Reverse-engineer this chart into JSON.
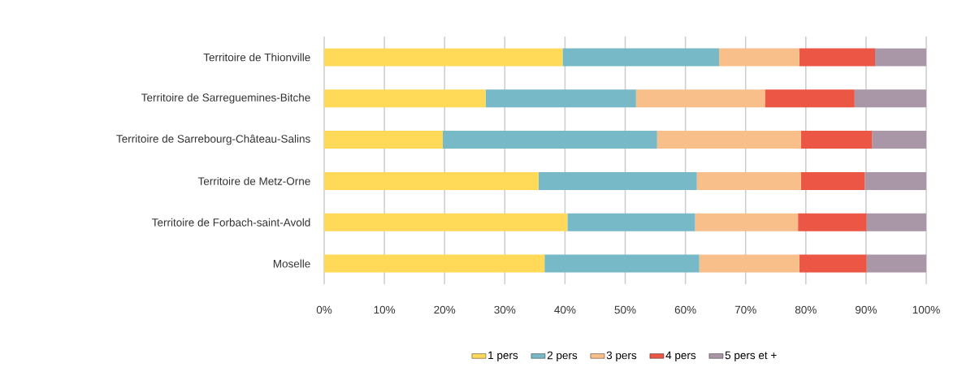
{
  "chart_data": {
    "type": "bar",
    "orientation": "horizontal",
    "stacked": true,
    "categories": [
      "Territoire de Thionville",
      "Territoire de Sarreguemines-Bitche",
      "Territoire de Sarrebourg-Château-Salins",
      "Territoire de Metz-Orne",
      "Territoire de Forbach-saint-Avold",
      "Moselle"
    ],
    "series": [
      {
        "name": "1 pers",
        "color": "#ffd957",
        "values": [
          39.6,
          26.8,
          19.7,
          35.6,
          40.4,
          36.6
        ]
      },
      {
        "name": "2 pers",
        "color": "#77b9c7",
        "values": [
          26.0,
          25.0,
          35.6,
          26.3,
          21.2,
          25.7
        ]
      },
      {
        "name": "3 pers",
        "color": "#f9bf8a",
        "values": [
          13.3,
          21.4,
          23.9,
          17.3,
          17.1,
          16.6
        ]
      },
      {
        "name": "4 pers",
        "color": "#eb5645",
        "values": [
          12.6,
          14.9,
          11.8,
          10.6,
          11.4,
          11.2
        ]
      },
      {
        "name": "5 pers et +",
        "color": "#a997a7",
        "values": [
          8.5,
          11.9,
          9.0,
          10.2,
          9.9,
          9.9
        ]
      }
    ],
    "xlim": [
      0,
      100
    ],
    "xticks": [
      {
        "value": 0,
        "label": "0%"
      },
      {
        "value": 10,
        "label": "10%"
      },
      {
        "value": 20,
        "label": "20%"
      },
      {
        "value": 30,
        "label": "30%"
      },
      {
        "value": 40,
        "label": "40%"
      },
      {
        "value": 50,
        "label": "50%"
      },
      {
        "value": 60,
        "label": "60%"
      },
      {
        "value": 70,
        "label": "70%"
      },
      {
        "value": 80,
        "label": "80%"
      },
      {
        "value": 90,
        "label": "90%"
      },
      {
        "value": 100,
        "label": "100%"
      }
    ],
    "grid": "x",
    "legend": "bottom"
  }
}
